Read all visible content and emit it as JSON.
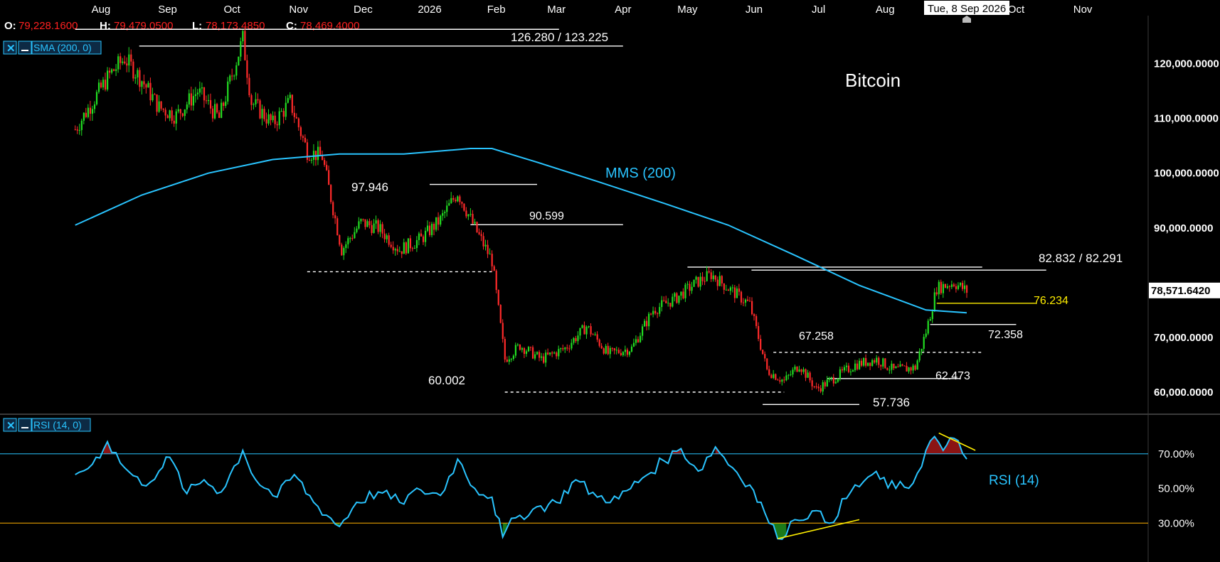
{
  "colors": {
    "background": "#000000",
    "bull_candle": "#22dd22",
    "bear_candle": "#ff2a2a",
    "sma_line": "#29c4ff",
    "rsi_line": "#29c4ff",
    "level_line": "#ffffff",
    "highlight_level": "#ffee00",
    "oversold_line": "#ffb000",
    "overbought_line": "#29c4ff",
    "overbought_fill": "#8b1414",
    "oversold_fill": "#1a7a1a"
  },
  "ohlc": {
    "open_label": "O:",
    "open_value": "79,228.1600",
    "high_label": "H:",
    "high_value": "79,479.0500",
    "low_label": "L:",
    "low_value": "78,173.4850",
    "close_label": "C:",
    "close_value": "78,469.4000"
  },
  "crosshair_date": "Tue, 8 Sep 2026",
  "indicator_badges": {
    "sma": "SMA (200, 0)",
    "rsi": "RSI (14, 0)",
    "close_icon": "close-icon",
    "minimize_icon": "minimize-icon"
  },
  "chart_data": {
    "type": "candlestick",
    "title": "Bitcoin",
    "x_axis_labels": [
      "Aug",
      "Sep",
      "Oct",
      "Nov",
      "Dec",
      "2026",
      "Feb",
      "Mar",
      "Apr",
      "May",
      "Jun",
      "Jul",
      "Aug",
      "Oct",
      "Nov"
    ],
    "price_ticks": [
      "120,000.0000",
      "110,000.0000",
      "100,000.0000",
      "90,000.0000",
      "70,000.0000",
      "60,000.0000"
    ],
    "price_ylim": [
      57000,
      128000
    ],
    "last_price": "78,571.6420",
    "last_price_value": 78571.642,
    "close_path": [
      [
        "2025-07-20",
        108000
      ],
      [
        "2025-07-28",
        113000
      ],
      [
        "2025-08-05",
        118000
      ],
      [
        "2025-08-12",
        121000
      ],
      [
        "2025-08-20",
        117000
      ],
      [
        "2025-08-28",
        112000
      ],
      [
        "2025-09-05",
        110500
      ],
      [
        "2025-09-15",
        115000
      ],
      [
        "2025-09-25",
        110000
      ],
      [
        "2025-10-01",
        118000
      ],
      [
        "2025-10-06",
        124500
      ],
      [
        "2025-10-10",
        113000
      ],
      [
        "2025-10-20",
        109000
      ],
      [
        "2025-10-28",
        113000
      ],
      [
        "2025-11-05",
        104000
      ],
      [
        "2025-11-12",
        103000
      ],
      [
        "2025-11-21",
        86000
      ],
      [
        "2025-11-30",
        91000
      ],
      [
        "2025-12-08",
        90000
      ],
      [
        "2025-12-18",
        86000
      ],
      [
        "2025-12-28",
        88000
      ],
      [
        "2026-01-06",
        91500
      ],
      [
        "2026-01-14",
        96500
      ],
      [
        "2026-01-22",
        90000
      ],
      [
        "2026-01-30",
        84000
      ],
      [
        "2026-02-05",
        66000
      ],
      [
        "2026-02-12",
        68500
      ],
      [
        "2026-02-22",
        66000
      ],
      [
        "2026-03-05",
        68000
      ],
      [
        "2026-03-15",
        72000
      ],
      [
        "2026-03-25",
        67000
      ],
      [
        "2026-04-05",
        68000
      ],
      [
        "2026-04-15",
        75000
      ],
      [
        "2026-04-25",
        77000
      ],
      [
        "2026-05-05",
        80000
      ],
      [
        "2026-05-12",
        81500
      ],
      [
        "2026-05-20",
        79000
      ],
      [
        "2026-05-30",
        76000
      ],
      [
        "2026-06-07",
        64000
      ],
      [
        "2026-06-15",
        62000
      ],
      [
        "2026-06-22",
        65000
      ],
      [
        "2026-06-30",
        60500
      ],
      [
        "2026-07-08",
        62500
      ],
      [
        "2026-07-18",
        65000
      ],
      [
        "2026-07-28",
        66000
      ],
      [
        "2026-08-05",
        64000
      ],
      [
        "2026-08-15",
        64500
      ],
      [
        "2026-08-20",
        71000
      ],
      [
        "2026-08-25",
        79000
      ],
      [
        "2026-09-02",
        80000
      ],
      [
        "2026-09-08",
        78469
      ]
    ],
    "sma_200": [
      [
        "2025-07-20",
        90500
      ],
      [
        "2025-08-20",
        96000
      ],
      [
        "2025-09-20",
        100000
      ],
      [
        "2025-10-20",
        102500
      ],
      [
        "2025-11-20",
        103500
      ],
      [
        "2025-12-20",
        103500
      ],
      [
        "2026-01-20",
        104500
      ],
      [
        "2026-01-30",
        104500
      ],
      [
        "2026-02-20",
        102000
      ],
      [
        "2026-03-20",
        98500
      ],
      [
        "2026-04-20",
        94500
      ],
      [
        "2026-05-20",
        90500
      ],
      [
        "2026-06-20",
        85000
      ],
      [
        "2026-07-20",
        79500
      ],
      [
        "2026-08-20",
        75000
      ],
      [
        "2026-09-08",
        74500
      ]
    ],
    "sma_label": "MMS (200)",
    "levels": [
      {
        "label": "126.280 / 123.225",
        "values": [
          126280,
          123225
        ],
        "start": "2025-07-20",
        "end": "2026-04-01",
        "style": "solid"
      },
      {
        "label": "97.946",
        "values": [
          97946
        ],
        "start": "2026-01-01",
        "end": "2026-02-20",
        "style": "solid"
      },
      {
        "label": "90.599",
        "values": [
          90599
        ],
        "start": "2026-01-20",
        "end": "2026-04-01",
        "style": "solid"
      },
      {
        "label": "",
        "values": [
          82000
        ],
        "start": "2025-11-05",
        "end": "2026-01-30",
        "style": "dashed"
      },
      {
        "label": "82.832 / 82.291",
        "values": [
          82832,
          82291
        ],
        "start": "2026-05-01",
        "end": "2026-10-15",
        "style": "solid"
      },
      {
        "label": "76.234",
        "values": [
          76234
        ],
        "start": "2026-08-25",
        "end": "2026-10-10",
        "style": "solid",
        "highlight": true
      },
      {
        "label": "72.358",
        "values": [
          72358
        ],
        "start": "2026-08-22",
        "end": "2026-10-01",
        "style": "solid"
      },
      {
        "label": "67.258",
        "values": [
          67258
        ],
        "start": "2026-06-10",
        "end": "2026-09-15",
        "style": "dashed"
      },
      {
        "label": "62.473",
        "values": [
          62473
        ],
        "start": "2026-07-05",
        "end": "2026-09-05",
        "style": "solid"
      },
      {
        "label": "60.002",
        "values": [
          60002
        ],
        "start": "2026-02-05",
        "end": "2026-06-15",
        "style": "dashed"
      },
      {
        "label": "57.736",
        "values": [
          57736
        ],
        "start": "2026-06-05",
        "end": "2026-07-20",
        "style": "solid"
      }
    ],
    "rsi": {
      "label": "RSI (14)",
      "ticks": [
        "70.00%",
        "50.00%",
        "30.00%"
      ],
      "ylim": [
        10,
        90
      ],
      "overbought": 70,
      "oversold": 30,
      "path": [
        [
          "2025-07-20",
          58
        ],
        [
          "2025-07-28",
          64
        ],
        [
          "2025-08-04",
          77
        ],
        [
          "2025-08-12",
          62
        ],
        [
          "2025-08-20",
          52
        ],
        [
          "2025-08-28",
          60
        ],
        [
          "2025-09-02",
          68
        ],
        [
          "2025-09-10",
          47
        ],
        [
          "2025-09-18",
          55
        ],
        [
          "2025-09-26",
          48
        ],
        [
          "2025-10-06",
          72
        ],
        [
          "2025-10-12",
          55
        ],
        [
          "2025-10-22",
          45
        ],
        [
          "2025-10-30",
          58
        ],
        [
          "2025-11-08",
          42
        ],
        [
          "2025-11-20",
          28
        ],
        [
          "2025-11-28",
          42
        ],
        [
          "2025-12-08",
          48
        ],
        [
          "2025-12-18",
          42
        ],
        [
          "2025-12-28",
          49
        ],
        [
          "2026-01-06",
          46
        ],
        [
          "2026-01-14",
          67
        ],
        [
          "2026-01-22",
          50
        ],
        [
          "2026-01-30",
          45
        ],
        [
          "2026-02-04",
          22
        ],
        [
          "2026-02-10",
          33
        ],
        [
          "2026-02-18",
          38
        ],
        [
          "2026-03-01",
          42
        ],
        [
          "2026-03-10",
          55
        ],
        [
          "2026-03-20",
          45
        ],
        [
          "2026-03-30",
          44
        ],
        [
          "2026-04-10",
          56
        ],
        [
          "2026-04-20",
          66
        ],
        [
          "2026-04-28",
          73
        ],
        [
          "2026-05-06",
          60
        ],
        [
          "2026-05-14",
          74
        ],
        [
          "2026-05-22",
          62
        ],
        [
          "2026-05-30",
          52
        ],
        [
          "2026-06-06",
          36
        ],
        [
          "2026-06-12",
          21
        ],
        [
          "2026-06-20",
          32
        ],
        [
          "2026-06-28",
          37
        ],
        [
          "2026-07-06",
          30
        ],
        [
          "2026-07-16",
          48
        ],
        [
          "2026-07-26",
          58
        ],
        [
          "2026-08-06",
          50
        ],
        [
          "2026-08-14",
          53
        ],
        [
          "2026-08-20",
          72
        ],
        [
          "2026-08-24",
          80
        ],
        [
          "2026-08-28",
          72
        ],
        [
          "2026-09-02",
          79
        ],
        [
          "2026-09-08",
          67
        ]
      ],
      "trendlines": [
        {
          "from": [
            "2026-06-12",
            21
          ],
          "to": [
            "2026-07-20",
            32
          ],
          "color": "#ffee00"
        },
        {
          "from": [
            "2026-08-26",
            82
          ],
          "to": [
            "2026-09-12",
            72
          ],
          "color": "#ffee00"
        }
      ]
    }
  }
}
